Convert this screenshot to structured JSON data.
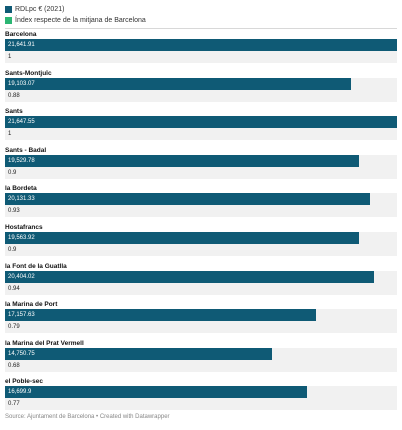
{
  "legend": [
    {
      "label": "RDLpc € (2021)",
      "color": "#0f5a75"
    },
    {
      "label": "Índex respecte de la mitjana de Barcelona",
      "color": "#2bb673"
    }
  ],
  "source_text": "Source: Ajuntament de Barcelona • Created with Datawrapper",
  "chart_data": {
    "type": "bar",
    "orientation": "horizontal",
    "categories": [
      "Barcelona",
      "Sants-Montjuïc",
      "Sants",
      "Sants - Badal",
      "la Bordeta",
      "Hostafrancs",
      "la Font de la Guatlla",
      "la Marina de Port",
      "la Marina del Prat Vermell",
      "el Poble-sec"
    ],
    "series": [
      {
        "name": "RDLpc € (2021)",
        "values": [
          21641.91,
          19103.07,
          21647.55,
          19529.78,
          20131.33,
          19563.92,
          20404.02,
          17157.63,
          14750.75,
          16699.9
        ],
        "labels": [
          "21,641.91",
          "19,103.07",
          "21,647.55",
          "19,529.78",
          "20,131.33",
          "19,563.92",
          "20,404.02",
          "17,157.63",
          "14,750.75",
          "16,699.9"
        ],
        "color": "#0f5a75"
      },
      {
        "name": "Índex respecte de la mitjana de Barcelona",
        "values": [
          1,
          0.88,
          1,
          0.9,
          0.93,
          0.9,
          0.94,
          0.79,
          0.68,
          0.77
        ],
        "labels": [
          "1",
          "0.88",
          "1",
          "0.9",
          "0.93",
          "0.9",
          "0.94",
          "0.79",
          "0.68",
          "0.77"
        ],
        "color": "#2bb673"
      }
    ],
    "xlim": [
      0,
      21647.55
    ]
  }
}
